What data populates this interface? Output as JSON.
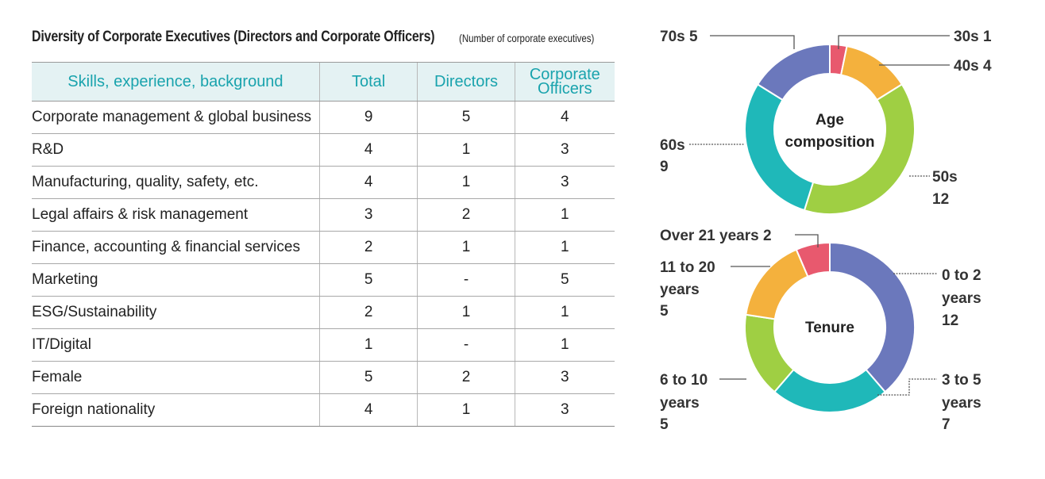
{
  "title": "Diversity of Corporate Executives (Directors and Corporate Officers)",
  "unit_note": "(Number of corporate executives)",
  "colors": {
    "header_text": "#19a3ad",
    "header_bg": "#e4f2f3",
    "red": "#e8596e",
    "orange": "#f4b13d",
    "green": "#9fcf43",
    "teal": "#1fb8b9",
    "purple": "#6b78bc"
  },
  "chart_data": [
    {
      "type": "table",
      "headers": [
        "Skills, experience, background",
        "Total",
        "Directors",
        "Corporate Officers"
      ],
      "rows": [
        [
          "Corporate management & global business",
          "9",
          "5",
          "4"
        ],
        [
          "R&D",
          "4",
          "1",
          "3"
        ],
        [
          "Manufacturing, quality, safety, etc.",
          "4",
          "1",
          "3"
        ],
        [
          "Legal affairs & risk management",
          "3",
          "2",
          "1"
        ],
        [
          "Finance, accounting & financial services",
          "2",
          "1",
          "1"
        ],
        [
          "Marketing",
          "5",
          "-",
          "5"
        ],
        [
          "ESG/Sustainability",
          "2",
          "1",
          "1"
        ],
        [
          "IT/Digital",
          "1",
          "-",
          "1"
        ],
        [
          "Female",
          "5",
          "2",
          "3"
        ],
        [
          "Foreign nationality",
          "4",
          "1",
          "3"
        ]
      ]
    },
    {
      "type": "pie",
      "title": "Age composition",
      "labels": [
        "30s",
        "40s",
        "50s",
        "60s",
        "70s"
      ],
      "values": [
        1,
        4,
        12,
        9,
        5
      ],
      "colors": [
        "#e8596e",
        "#f4b13d",
        "#9fcf43",
        "#1fb8b9",
        "#6b78bc"
      ],
      "annotations": [
        "30s 1",
        "40s 4",
        "50s 12",
        "60s 9",
        "70s 5"
      ]
    },
    {
      "type": "pie",
      "title": "Tenure",
      "labels": [
        "0 to 2 years",
        "3 to 5 years",
        "6 to 10 years",
        "11 to 20 years",
        "Over 21 years"
      ],
      "values": [
        12,
        7,
        5,
        5,
        2
      ],
      "colors": [
        "#6b78bc",
        "#1fb8b9",
        "#9fcf43",
        "#f4b13d",
        "#e8596e"
      ],
      "annotations": [
        "0 to 2 years 12",
        "3 to 5 years 7",
        "6 to 10 years 5",
        "11 to 20 years 5",
        "Over 21 years 2"
      ]
    }
  ]
}
